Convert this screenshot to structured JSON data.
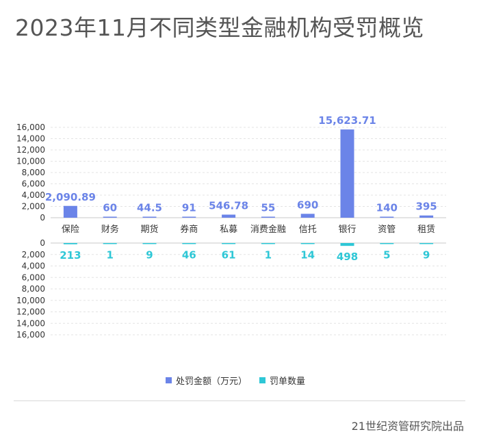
{
  "title": "2023年11月不同类型金融机构受罚概览",
  "footer": "21世纪资管研究院出品",
  "colors": {
    "amount": "#6b84e8",
    "count": "#2ec7d6",
    "grid": "#e3e3e3",
    "axis": "#c9c9c9"
  },
  "chart_data": {
    "type": "bar",
    "layout": "mirrored",
    "title": "2023年11月不同类型金融机构受罚概览",
    "categories": [
      "保险",
      "财务",
      "期货",
      "券商",
      "私募",
      "消费金融",
      "信托",
      "银行",
      "资管",
      "租赁"
    ],
    "series": [
      {
        "name": "处罚金额（万元）",
        "values": [
          2090.89,
          60,
          44.5,
          91,
          546.78,
          55,
          690,
          15623.71,
          140,
          395
        ],
        "labels": [
          "2,090.89",
          "60",
          "44.5",
          "91",
          "546.78",
          "55",
          "690",
          "15,623.71",
          "140",
          "395"
        ]
      },
      {
        "name": "罚单数量",
        "values": [
          213,
          1,
          9,
          46,
          61,
          1,
          14,
          498,
          5,
          9
        ],
        "labels": [
          "213",
          "1",
          "9",
          "46",
          "61",
          "1",
          "14",
          "498",
          "5",
          "9"
        ]
      }
    ],
    "ylim_top": [
      0,
      16000
    ],
    "ylim_bottom": [
      0,
      16000
    ],
    "yticks_top": [
      "0",
      "2,000",
      "4,000",
      "6,000",
      "8,000",
      "10,000",
      "12,000",
      "14,000",
      "16,000"
    ],
    "yticks_bottom": [
      "0",
      "2,000",
      "4,000",
      "6,000",
      "8,000",
      "10,000",
      "12,000",
      "14,000",
      "16,000"
    ],
    "legend_position": "bottom-center",
    "grid": true
  }
}
